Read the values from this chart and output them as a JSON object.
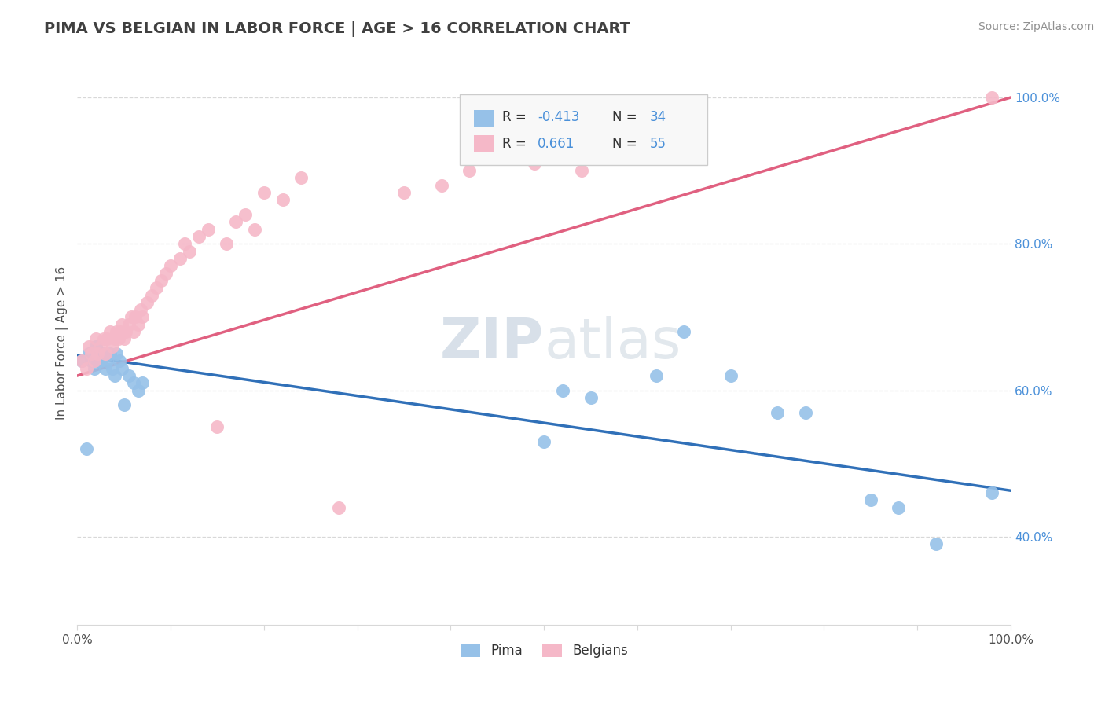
{
  "title": "PIMA VS BELGIAN IN LABOR FORCE | AGE > 16 CORRELATION CHART",
  "source_text": "Source: ZipAtlas.com",
  "ylabel": "In Labor Force | Age > 16",
  "xlim": [
    0.0,
    1.0
  ],
  "ylim": [
    0.28,
    1.05
  ],
  "y_ticks_right": [
    0.4,
    0.6,
    0.8,
    1.0
  ],
  "y_tick_labels_right": [
    "40.0%",
    "60.0%",
    "80.0%",
    "100.0%"
  ],
  "pima_color": "#96c1e8",
  "belgian_color": "#f5b8c8",
  "pima_line_color": "#3070b8",
  "belgian_line_color": "#e06080",
  "watermark_color": "#c8d8e8",
  "title_color": "#404040",
  "source_color": "#909090",
  "tick_color": "#505050",
  "right_tick_color": "#4a90d9",
  "grid_color": "#d8d8d8",
  "pima_x": [
    0.005,
    0.01,
    0.012,
    0.015,
    0.018,
    0.02,
    0.022,
    0.025,
    0.028,
    0.03,
    0.032,
    0.035,
    0.038,
    0.04,
    0.042,
    0.045,
    0.048,
    0.05,
    0.055,
    0.06,
    0.065,
    0.07,
    0.5,
    0.52,
    0.55,
    0.62,
    0.65,
    0.7,
    0.75,
    0.78,
    0.85,
    0.88,
    0.92,
    0.98
  ],
  "pima_y": [
    0.64,
    0.52,
    0.65,
    0.64,
    0.63,
    0.66,
    0.64,
    0.64,
    0.65,
    0.63,
    0.64,
    0.65,
    0.63,
    0.62,
    0.65,
    0.64,
    0.63,
    0.58,
    0.62,
    0.61,
    0.6,
    0.61,
    0.53,
    0.6,
    0.59,
    0.62,
    0.68,
    0.62,
    0.57,
    0.57,
    0.45,
    0.44,
    0.39,
    0.46
  ],
  "belgian_x": [
    0.005,
    0.01,
    0.012,
    0.015,
    0.018,
    0.02,
    0.022,
    0.025,
    0.028,
    0.03,
    0.032,
    0.035,
    0.038,
    0.04,
    0.042,
    0.044,
    0.046,
    0.048,
    0.05,
    0.052,
    0.055,
    0.058,
    0.06,
    0.062,
    0.065,
    0.068,
    0.07,
    0.075,
    0.08,
    0.085,
    0.09,
    0.095,
    0.1,
    0.11,
    0.115,
    0.12,
    0.13,
    0.14,
    0.15,
    0.16,
    0.17,
    0.18,
    0.19,
    0.2,
    0.22,
    0.24,
    0.28,
    0.35,
    0.39,
    0.42,
    0.45,
    0.49,
    0.5,
    0.54,
    0.98
  ],
  "belgian_y": [
    0.64,
    0.63,
    0.66,
    0.65,
    0.64,
    0.67,
    0.65,
    0.66,
    0.67,
    0.65,
    0.67,
    0.68,
    0.66,
    0.67,
    0.68,
    0.67,
    0.68,
    0.69,
    0.67,
    0.68,
    0.69,
    0.7,
    0.68,
    0.7,
    0.69,
    0.71,
    0.7,
    0.72,
    0.73,
    0.74,
    0.75,
    0.76,
    0.77,
    0.78,
    0.8,
    0.79,
    0.81,
    0.82,
    0.55,
    0.8,
    0.83,
    0.84,
    0.82,
    0.87,
    0.86,
    0.89,
    0.44,
    0.87,
    0.88,
    0.9,
    0.92,
    0.91,
    0.93,
    0.9,
    1.0
  ]
}
